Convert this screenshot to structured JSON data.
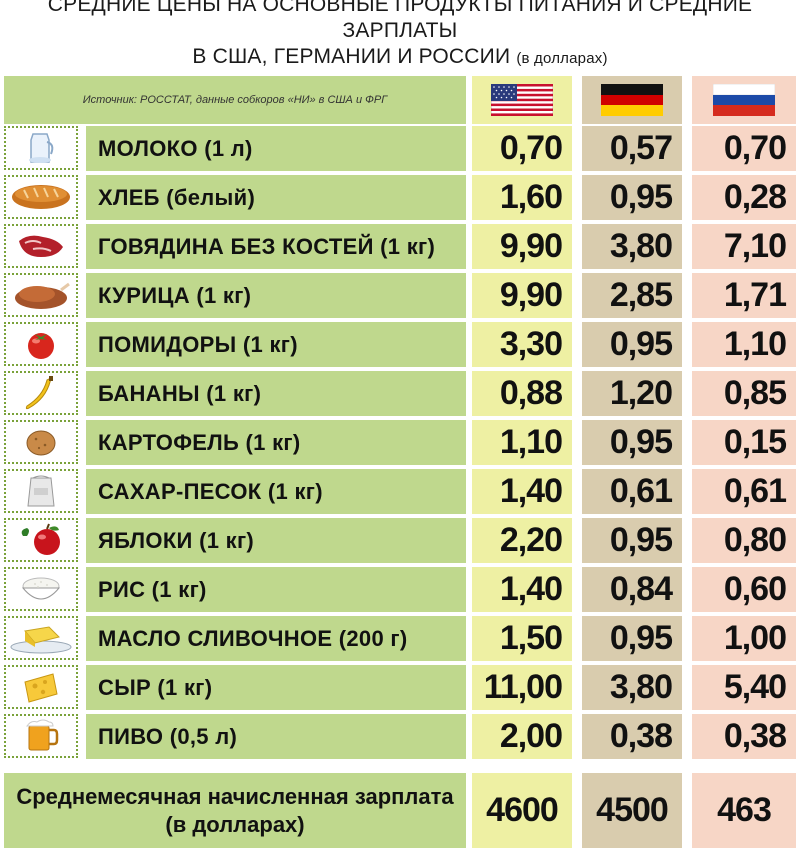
{
  "title": {
    "line1": "СРЕДНИЕ ЦЕНЫ НА ОСНОВНЫЕ ПРОДУКТЫ ПИТАНИЯ И СРЕДНИЕ ЗАРПЛАТЫ",
    "line2": "В США, ГЕРМАНИИ И РОССИИ",
    "line2_small": "(в долларах)"
  },
  "header": {
    "source": "Источник: РОССТАТ, данные собкоров «НИ» в США и ФРГ",
    "columns": [
      {
        "country": "USA",
        "icon": "usa-flag-icon"
      },
      {
        "country": "Germany",
        "icon": "germany-flag-icon"
      },
      {
        "country": "Russia",
        "icon": "russia-flag-icon"
      }
    ]
  },
  "colors": {
    "green": "#bfd88d",
    "usa": "#eef0a3",
    "germany": "#d9ccae",
    "russia": "#f7d6c6"
  },
  "rows": [
    {
      "icon": "milk-icon",
      "name": "МОЛОКО (1 л)",
      "usa": "0,70",
      "ger": "0,57",
      "rus": "0,70"
    },
    {
      "icon": "bread-icon",
      "name": "ХЛЕБ (белый)",
      "usa": "1,60",
      "ger": "0,95",
      "rus": "0,28"
    },
    {
      "icon": "beef-icon",
      "name": "ГОВЯДИНА БЕЗ КОСТЕЙ (1 кг)",
      "usa": "9,90",
      "ger": "3,80",
      "rus": "7,10"
    },
    {
      "icon": "chicken-icon",
      "name": "КУРИЦА (1 кг)",
      "usa": "9,90",
      "ger": "2,85",
      "rus": "1,71"
    },
    {
      "icon": "tomato-icon",
      "name": "ПОМИДОРЫ (1 кг)",
      "usa": "3,30",
      "ger": "0,95",
      "rus": "1,10"
    },
    {
      "icon": "banana-icon",
      "name": "БАНАНЫ (1 кг)",
      "usa": "0,88",
      "ger": "1,20",
      "rus": "0,85"
    },
    {
      "icon": "potato-icon",
      "name": "КАРТОФЕЛЬ (1 кг)",
      "usa": "1,10",
      "ger": "0,95",
      "rus": "0,15"
    },
    {
      "icon": "sugar-bag-icon",
      "name": "САХАР-ПЕСОК (1 кг)",
      "usa": "1,40",
      "ger": "0,61",
      "rus": "0,61"
    },
    {
      "icon": "apple-icon",
      "name": "ЯБЛОКИ (1 кг)",
      "usa": "2,20",
      "ger": "0,95",
      "rus": "0,80"
    },
    {
      "icon": "rice-bowl-icon",
      "name": "РИС (1 кг)",
      "usa": "1,40",
      "ger": "0,84",
      "rus": "0,60"
    },
    {
      "icon": "butter-icon",
      "name": "МАСЛО СЛИВОЧНОЕ (200 г)",
      "usa": "1,50",
      "ger": "0,95",
      "rus": "1,00"
    },
    {
      "icon": "cheese-icon",
      "name": "СЫР (1 кг)",
      "usa": "11,00",
      "ger": "3,80",
      "rus": "5,40"
    },
    {
      "icon": "beer-mug-icon",
      "name": "ПИВО (0,5 л)",
      "usa": "2,00",
      "ger": "0,38",
      "rus": "0,38"
    }
  ],
  "salary": {
    "label_line1": "Среднемесячная начисленная зарплата",
    "label_line2": "(в долларах)",
    "usa": "4600",
    "ger": "4500",
    "rus": "463"
  }
}
